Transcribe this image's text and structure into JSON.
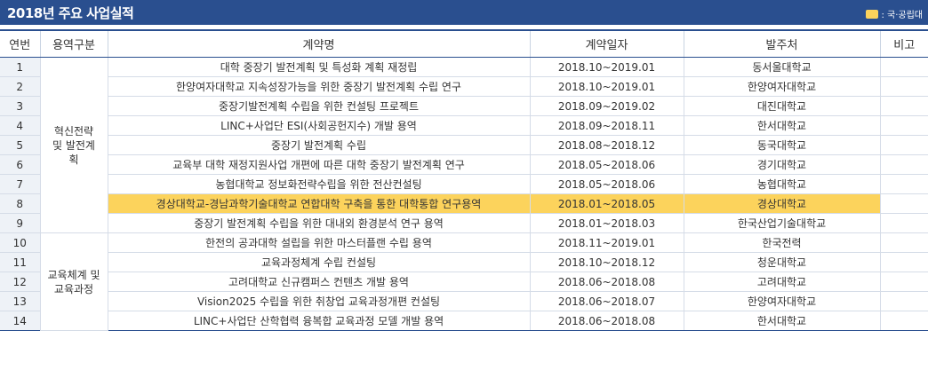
{
  "header": {
    "title": "2018년 주요 사업실적",
    "legend_label": ": 국·공립대",
    "legend_color": "#fcd35c",
    "bar_color": "#2a4f8f"
  },
  "table": {
    "columns": [
      "연번",
      "용역구분",
      "계약명",
      "계약일자",
      "발주처",
      "비고"
    ],
    "categories": [
      {
        "label": "혁신전략\n및 발전계\n획",
        "rows": 9
      },
      {
        "label": "교육체계 및\n교육과정",
        "rows": 5
      }
    ],
    "rows": [
      {
        "no": "1",
        "name": "대학 중장기 발전계획 및 특성화 계획 재정립",
        "date": "2018.10~2019.01",
        "client": "동서울대학교",
        "note": "",
        "highlight": false
      },
      {
        "no": "2",
        "name": "한양여자대학교 지속성장가능을 위한 중장기 발전계획 수립 연구",
        "date": "2018.10~2019.01",
        "client": "한양여자대학교",
        "note": "",
        "highlight": false
      },
      {
        "no": "3",
        "name": "중장기발전계획 수립을 위한 컨설팅 프로젝트",
        "date": "2018.09~2019.02",
        "client": "대진대학교",
        "note": "",
        "highlight": false
      },
      {
        "no": "4",
        "name": "LINC+사업단 ESI(사회공헌지수) 개발 용역",
        "date": "2018.09~2018.11",
        "client": "한서대학교",
        "note": "",
        "highlight": false
      },
      {
        "no": "5",
        "name": "중장기 발전계획 수립",
        "date": "2018.08~2018.12",
        "client": "동국대학교",
        "note": "",
        "highlight": false
      },
      {
        "no": "6",
        "name": "교육부 대학 재정지원사업 개편에 따른 대학 중장기 발전계획 연구",
        "date": "2018.05~2018.06",
        "client": "경기대학교",
        "note": "",
        "highlight": false
      },
      {
        "no": "7",
        "name": "농협대학교 정보화전략수립을 위한 전산컨설팅",
        "date": "2018.05~2018.06",
        "client": "농협대학교",
        "note": "",
        "highlight": false
      },
      {
        "no": "8",
        "name": "경상대학교-경남과학기술대학교 연합대학 구축을 통한 대학통합 연구용역",
        "date": "2018.01~2018.05",
        "client": "경상대학교",
        "note": "",
        "highlight": true
      },
      {
        "no": "9",
        "name": "중장기 발전계획 수립을 위한 대내외 환경분석 연구 용역",
        "date": "2018.01~2018.03",
        "client": "한국산업기술대학교",
        "note": "",
        "highlight": false
      },
      {
        "no": "10",
        "name": "한전의 공과대학 설립을 위한 마스터플랜 수립 용역",
        "date": "2018.11~2019.01",
        "client": "한국전력",
        "note": "",
        "highlight": false
      },
      {
        "no": "11",
        "name": "교육과정체계 수립 컨설팅",
        "date": "2018.10~2018.12",
        "client": "청운대학교",
        "note": "",
        "highlight": false
      },
      {
        "no": "12",
        "name": "고려대학교 신규캠퍼스 컨텐츠 개발 용역",
        "date": "2018.06~2018.08",
        "client": "고려대학교",
        "note": "",
        "highlight": false
      },
      {
        "no": "13",
        "name": "Vision2025 수립을 위한 취창업 교육과정개편 컨설팅",
        "date": "2018.06~2018.07",
        "client": "한양여자대학교",
        "note": "",
        "highlight": false
      },
      {
        "no": "14",
        "name": "LINC+사업단 산학협력 융복합 교육과정 모델 개발 용역",
        "date": "2018.06~2018.08",
        "client": "한서대학교",
        "note": "",
        "highlight": false
      }
    ]
  }
}
